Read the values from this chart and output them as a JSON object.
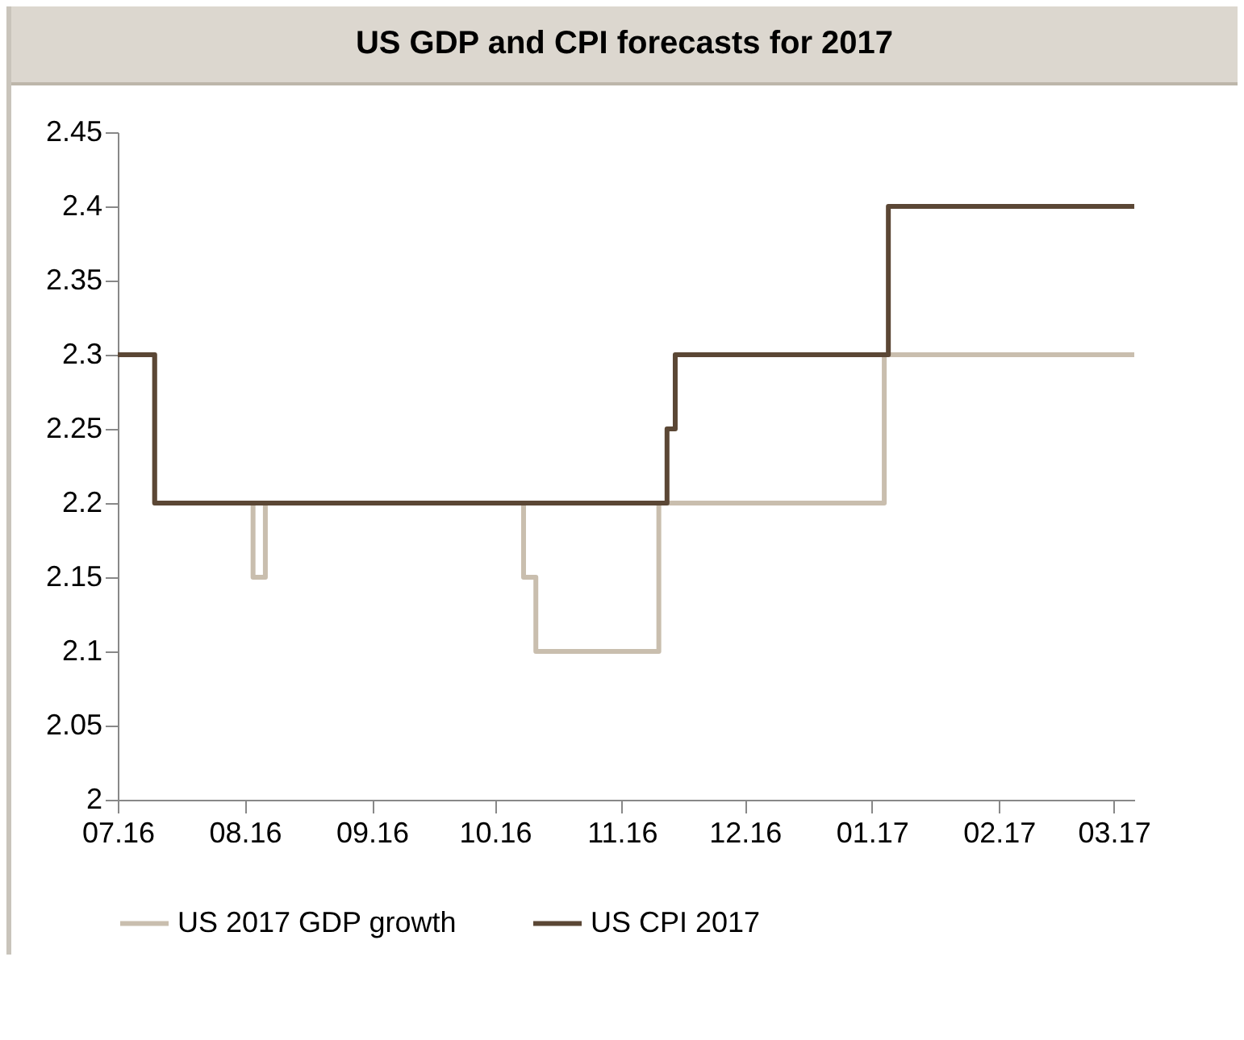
{
  "chart_data": {
    "type": "step",
    "title": "US GDP and CPI forecasts for 2017",
    "series": [
      {
        "name": "US 2017 GDP growth",
        "color": "#c9beae",
        "x": [
          "2016-07-01",
          "2016-07-10",
          "2016-08-03",
          "2016-08-06",
          "2016-10-08",
          "2016-10-11",
          "2016-11-10",
          "2017-01-04",
          "2017-03-06"
        ],
        "values": [
          2.3,
          2.2,
          2.15,
          2.2,
          2.15,
          2.1,
          2.2,
          2.3,
          2.3
        ]
      },
      {
        "name": "US CPI 2017",
        "color": "#5b4735",
        "x": [
          "2016-07-01",
          "2016-07-10",
          "2016-11-12",
          "2016-11-14",
          "2017-01-05",
          "2017-03-06"
        ],
        "values": [
          2.3,
          2.2,
          2.25,
          2.3,
          2.4,
          2.4
        ]
      }
    ],
    "xlim": [
      "2016-07-01",
      "2017-03-06"
    ],
    "xticks": [
      {
        "value": "2016-07-01",
        "label": "07.16"
      },
      {
        "value": "2016-08-01",
        "label": "08.16"
      },
      {
        "value": "2016-09-01",
        "label": "09.16"
      },
      {
        "value": "2016-10-01",
        "label": "10.16"
      },
      {
        "value": "2016-11-01",
        "label": "11.16"
      },
      {
        "value": "2016-12-01",
        "label": "12.16"
      },
      {
        "value": "2017-01-01",
        "label": "01.17"
      },
      {
        "value": "2017-02-01",
        "label": "02.17"
      },
      {
        "value": "2017-03-01",
        "label": "03.17"
      }
    ],
    "ylim": [
      2,
      2.45
    ],
    "yticks": [
      2,
      2.05,
      2.1,
      2.15,
      2.2,
      2.25,
      2.3,
      2.35,
      2.4,
      2.45
    ],
    "grid": false,
    "legend": "bottom",
    "marker": "none",
    "line_style": "solid"
  }
}
